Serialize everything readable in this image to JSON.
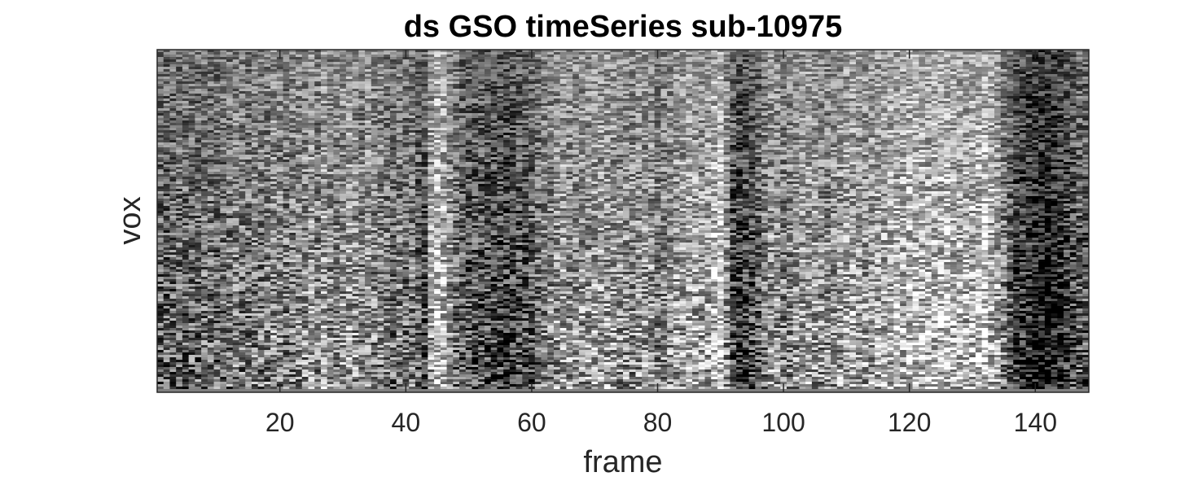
{
  "chart_data": {
    "type": "heatmap",
    "title": "ds GSO timeSeries sub-10975",
    "xlabel": "frame",
    "ylabel": "vox",
    "xlim": [
      0.5,
      148.5
    ],
    "xticks": [
      20,
      40,
      60,
      80,
      100,
      120,
      140
    ],
    "yticks": [],
    "colormap": "gray",
    "colors": {
      "low": "#000000",
      "high": "#ffffff",
      "axis": "#262626"
    },
    "column_brightness": [
      0.42,
      0.4,
      0.41,
      0.43,
      0.42,
      0.44,
      0.43,
      0.45,
      0.44,
      0.43,
      0.45,
      0.46,
      0.5,
      0.47,
      0.46,
      0.48,
      0.47,
      0.49,
      0.55,
      0.5,
      0.48,
      0.5,
      0.52,
      0.54,
      0.58,
      0.5,
      0.6,
      0.52,
      0.5,
      0.56,
      0.6,
      0.55,
      0.5,
      0.58,
      0.52,
      0.5,
      0.48,
      0.45,
      0.5,
      0.46,
      0.48,
      0.4,
      0.35,
      0.6,
      0.72,
      0.65,
      0.55,
      0.45,
      0.4,
      0.38,
      0.37,
      0.36,
      0.35,
      0.34,
      0.33,
      0.32,
      0.33,
      0.35,
      0.36,
      0.4,
      0.45,
      0.5,
      0.52,
      0.55,
      0.58,
      0.56,
      0.54,
      0.55,
      0.56,
      0.58,
      0.6,
      0.58,
      0.57,
      0.55,
      0.54,
      0.53,
      0.55,
      0.56,
      0.55,
      0.5,
      0.52,
      0.55,
      0.58,
      0.6,
      0.62,
      0.6,
      0.58,
      0.6,
      0.68,
      0.72,
      0.55,
      0.35,
      0.3,
      0.32,
      0.35,
      0.4,
      0.5,
      0.58,
      0.55,
      0.5,
      0.52,
      0.55,
      0.58,
      0.6,
      0.58,
      0.55,
      0.52,
      0.55,
      0.58,
      0.6,
      0.62,
      0.6,
      0.58,
      0.6,
      0.62,
      0.63,
      0.64,
      0.65,
      0.66,
      0.68,
      0.67,
      0.65,
      0.66,
      0.67,
      0.68,
      0.7,
      0.66,
      0.65,
      0.64,
      0.66,
      0.68,
      0.72,
      0.65,
      0.6,
      0.5,
      0.4,
      0.3,
      0.28,
      0.25,
      0.22,
      0.2,
      0.18,
      0.22,
      0.25,
      0.3,
      0.35,
      0.4,
      0.38
    ]
  }
}
